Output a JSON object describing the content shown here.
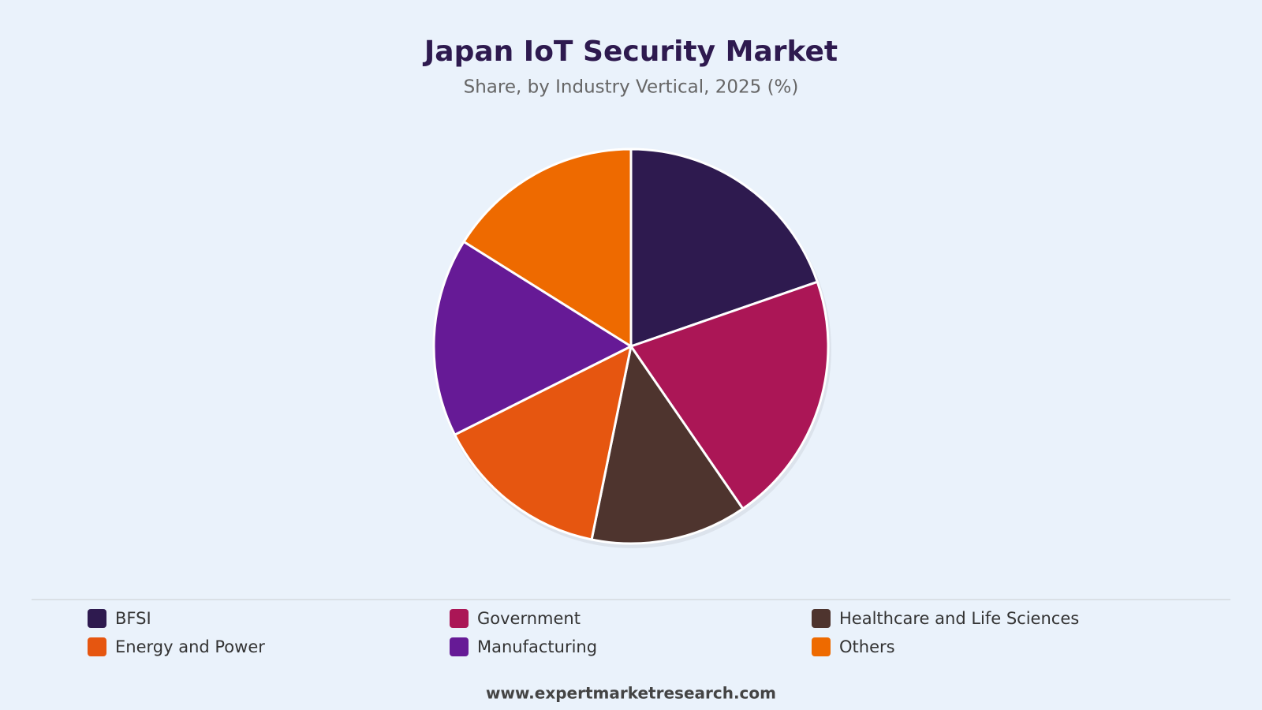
{
  "chart_data": {
    "type": "pie",
    "title": "Japan IoT Security Market",
    "subtitle": "Share, by Industry Vertical, 2025 (%)",
    "categories": [
      "BFSI",
      "Government",
      "Healthcare and Life Sciences",
      "Energy and Power",
      "Manufacturing",
      "Others"
    ],
    "values": [
      19.7,
      20.7,
      12.8,
      14.4,
      16.3,
      16.1
    ],
    "colors": [
      "#2e1a4f",
      "#ab1656",
      "#4e342e",
      "#e65610",
      "#661a96",
      "#ee6a00"
    ]
  },
  "footer": "www.expertmarketresearch.com"
}
